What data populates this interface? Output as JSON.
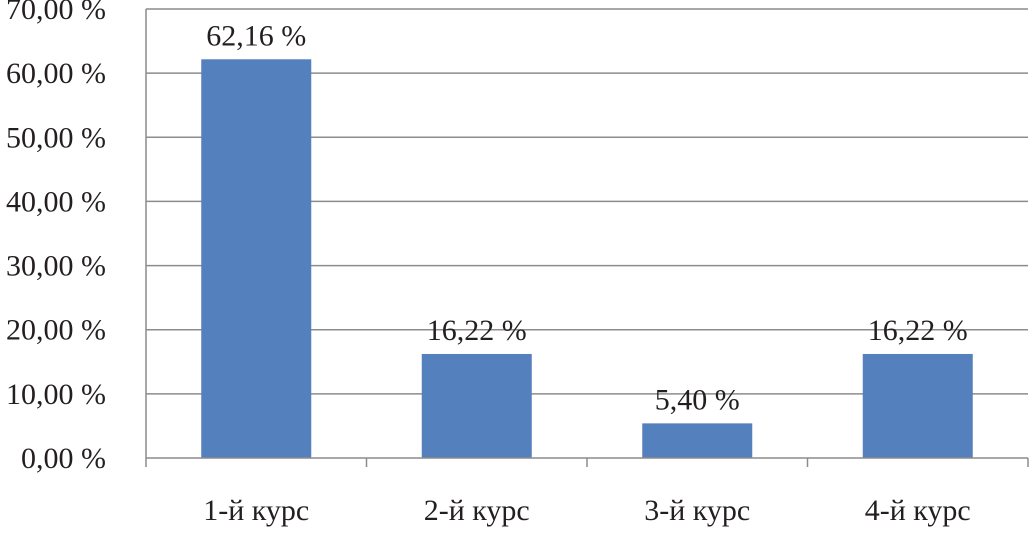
{
  "chart_data": {
    "type": "bar",
    "categories": [
      "1-й курс",
      "2-й курс",
      "3-й курс",
      "4-й курс"
    ],
    "values": [
      62.16,
      16.22,
      5.4,
      16.22
    ],
    "value_labels": [
      "62,16 %",
      "16,22 %",
      "5,40 %",
      "16,22 %"
    ],
    "y_ticks": [
      0,
      10,
      20,
      30,
      40,
      50,
      60,
      70
    ],
    "y_tick_labels": [
      "0,00 %",
      "10,00 %",
      "20,00 %",
      "30,00 %",
      "40,00 %",
      "50,00 %",
      "60,00 %",
      "70,00 %"
    ],
    "ylim": [
      0,
      70
    ],
    "grid": true,
    "legend": "none",
    "bar_color": "#5580be",
    "grid_color": "#8c8c8c",
    "text_color": "#231f20"
  }
}
